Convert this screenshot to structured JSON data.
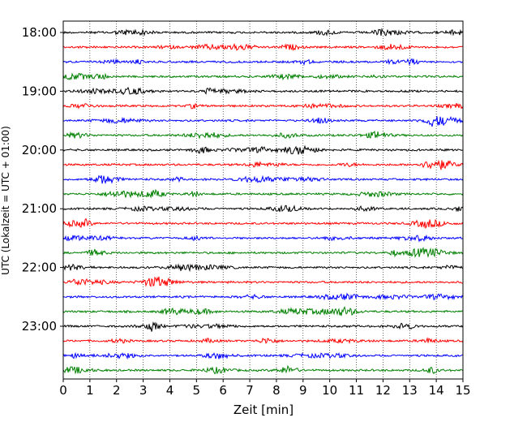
{
  "chart_data": {
    "type": "line",
    "title": "",
    "xlabel": "Zeit  [min]",
    "ylabel": "UTC (Lokalzeit = UTC + 01:00)",
    "xlim": [
      0,
      15
    ],
    "x_ticks": [
      0,
      1,
      2,
      3,
      4,
      5,
      6,
      7,
      8,
      9,
      10,
      11,
      12,
      13,
      14,
      15
    ],
    "x_tick_labels": [
      "0",
      "1",
      "2",
      "3",
      "4",
      "5",
      "6",
      "7",
      "8",
      "9",
      "10",
      "11",
      "12",
      "13",
      "14",
      "15"
    ],
    "y_tick_labels": [
      "18:00",
      "19:00",
      "20:00",
      "21:00",
      "22:00",
      "23:00"
    ],
    "grid": "vertical dotted",
    "start_hour": 18,
    "minutes_per_trace": 15,
    "trace_colors": [
      "#000000",
      "#ff0000",
      "#0000ff",
      "#008000"
    ],
    "series": [
      {
        "start": "18:00",
        "color": "#000000"
      },
      {
        "start": "18:15",
        "color": "#ff0000"
      },
      {
        "start": "18:30",
        "color": "#0000ff"
      },
      {
        "start": "18:45",
        "color": "#008000"
      },
      {
        "start": "19:00",
        "color": "#000000"
      },
      {
        "start": "19:15",
        "color": "#ff0000"
      },
      {
        "start": "19:30",
        "color": "#0000ff"
      },
      {
        "start": "19:45",
        "color": "#008000"
      },
      {
        "start": "20:00",
        "color": "#000000"
      },
      {
        "start": "20:15",
        "color": "#ff0000"
      },
      {
        "start": "20:30",
        "color": "#0000ff"
      },
      {
        "start": "20:45",
        "color": "#008000"
      },
      {
        "start": "21:00",
        "color": "#000000"
      },
      {
        "start": "21:15",
        "color": "#ff0000"
      },
      {
        "start": "21:30",
        "color": "#0000ff"
      },
      {
        "start": "21:45",
        "color": "#008000"
      },
      {
        "start": "22:00",
        "color": "#000000"
      },
      {
        "start": "22:15",
        "color": "#ff0000"
      },
      {
        "start": "22:30",
        "color": "#0000ff"
      },
      {
        "start": "22:45",
        "color": "#008000"
      },
      {
        "start": "23:00",
        "color": "#000000"
      },
      {
        "start": "23:15",
        "color": "#ff0000"
      },
      {
        "start": "23:30",
        "color": "#0000ff"
      },
      {
        "start": "23:45",
        "color": "#008000"
      }
    ]
  }
}
